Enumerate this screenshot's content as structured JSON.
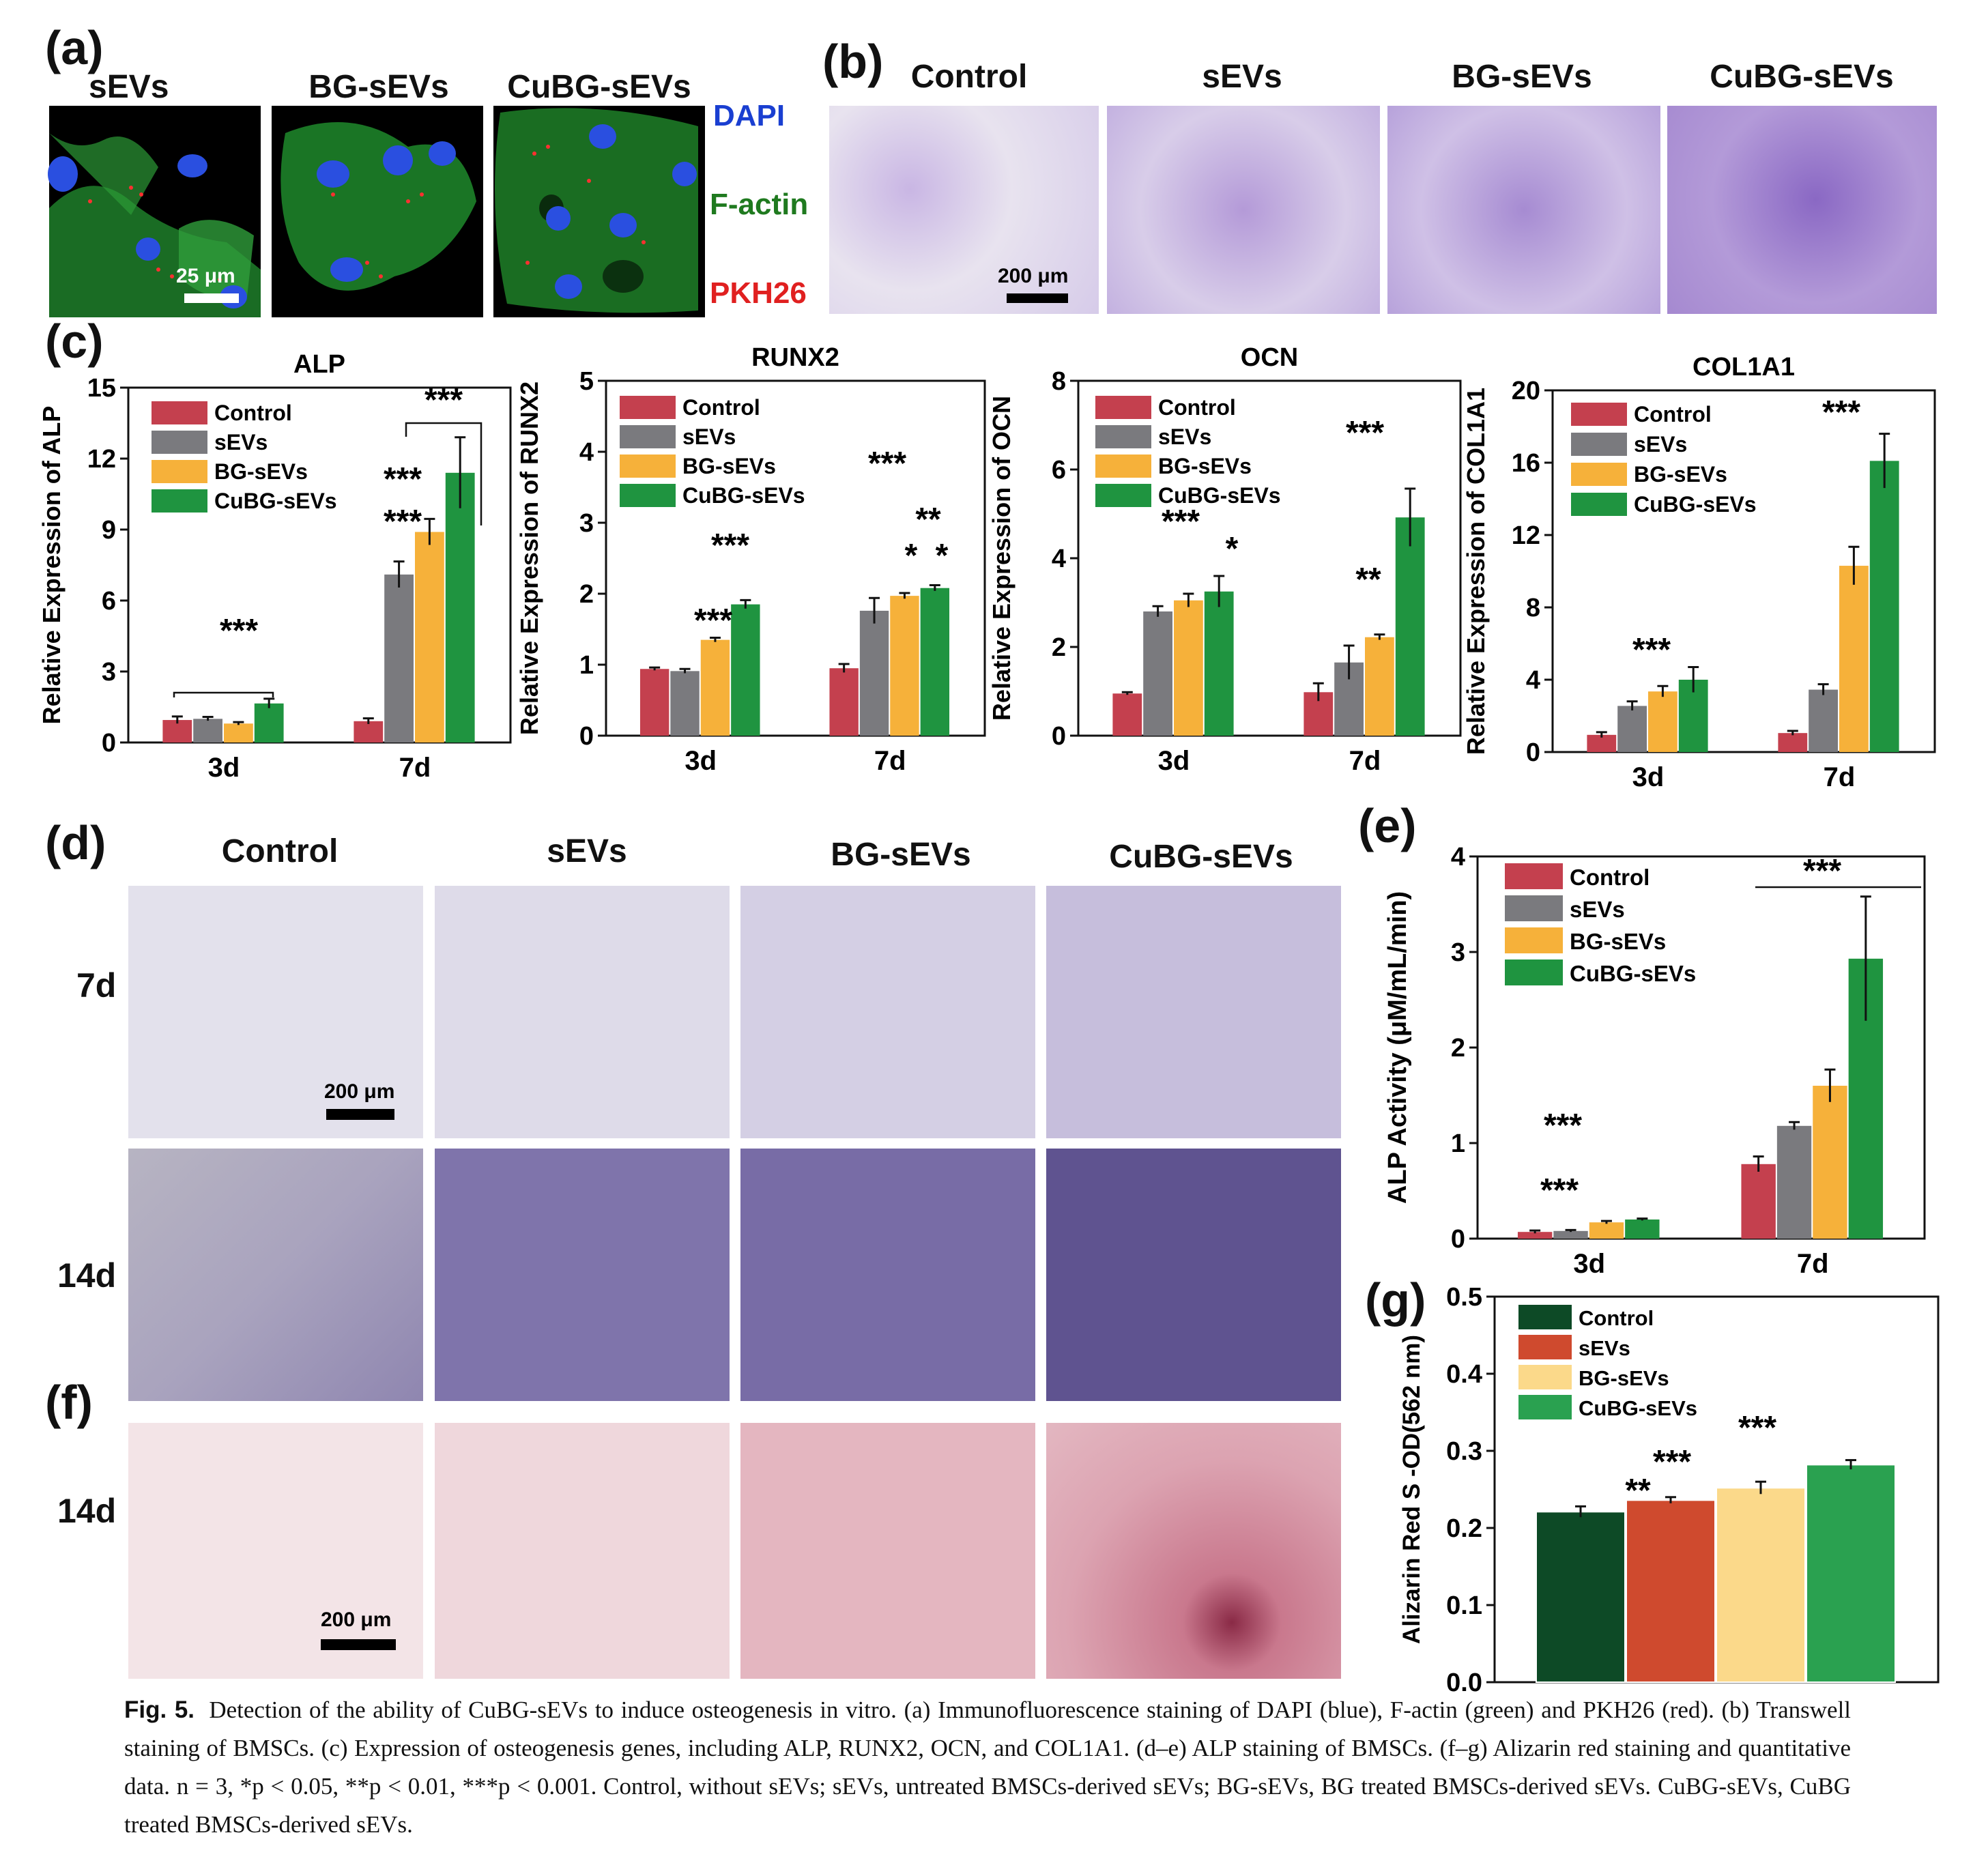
{
  "panel_letters": {
    "a": "(a)",
    "b": "(b)",
    "c": "(c)",
    "d": "(d)",
    "e": "(e)",
    "f": "(f)",
    "g": "(g)"
  },
  "panel_a": {
    "columns": [
      "sEVs",
      "BG-sEVs",
      "CuBG-sEVs"
    ],
    "legend": [
      {
        "label": "DAPI",
        "color": "#1a3fd1"
      },
      {
        "label": "F-actin",
        "color": "#1f7a1f"
      },
      {
        "label": "PKH26",
        "color": "#e02020"
      }
    ],
    "scale": "25 μm"
  },
  "panel_b": {
    "columns": [
      "Control",
      "sEVs",
      "BG-sEVs",
      "CuBG-sEVs"
    ],
    "scale": "200 μm"
  },
  "panel_d": {
    "columns": [
      "Control",
      "sEVs",
      "BG-sEVs",
      "CuBG-sEVs"
    ],
    "rows": [
      "7d",
      "14d"
    ],
    "scale": "200 μm"
  },
  "panel_f": {
    "rows": [
      "14d"
    ],
    "scale": "200 μm"
  },
  "legend_series": [
    "Control",
    "sEVs",
    "BG-sEVs",
    "CuBG-sEVs"
  ],
  "colors": {
    "c_control": "#c4404e",
    "c_sevs": "#7a7a7e",
    "c_bg": "#f6b13a",
    "c_cubg": "#1f9440",
    "g_control": "#0d4a26",
    "g_sevs": "#cf4a2e",
    "g_bg": "#fbd98a",
    "g_cubg": "#2aa150"
  },
  "chart_data": [
    {
      "id": "alp",
      "type": "bar",
      "title": "ALP",
      "ylabel": "Relative  Expression of ALP",
      "categories": [
        "3d",
        "7d"
      ],
      "ylim": [
        0,
        15
      ],
      "yticks": [
        0,
        3,
        6,
        9,
        12,
        15
      ],
      "series": [
        {
          "name": "Control",
          "values": [
            0.95,
            0.9
          ],
          "errors": [
            0.15,
            0.12
          ]
        },
        {
          "name": "sEVs",
          "values": [
            1.0,
            7.1
          ],
          "errors": [
            0.08,
            0.55
          ]
        },
        {
          "name": "BG-sEVs",
          "values": [
            0.8,
            8.9
          ],
          "errors": [
            0.06,
            0.55
          ]
        },
        {
          "name": "CuBG-sEVs",
          "values": [
            1.65,
            11.4
          ],
          "errors": [
            0.2,
            1.5
          ]
        }
      ],
      "annotations": [
        "***",
        "***",
        "***",
        "***"
      ]
    },
    {
      "id": "runx2",
      "type": "bar",
      "title": "RUNX2",
      "ylabel": "Relative  Expression of RUNX2",
      "categories": [
        "3d",
        "7d"
      ],
      "ylim": [
        0,
        5
      ],
      "yticks": [
        0,
        1,
        2,
        3,
        4,
        5
      ],
      "series": [
        {
          "name": "Control",
          "values": [
            0.94,
            0.95
          ],
          "errors": [
            0.02,
            0.06
          ]
        },
        {
          "name": "sEVs",
          "values": [
            0.91,
            1.76
          ],
          "errors": [
            0.03,
            0.18
          ]
        },
        {
          "name": "BG-sEVs",
          "values": [
            1.35,
            1.97
          ],
          "errors": [
            0.03,
            0.04
          ]
        },
        {
          "name": "CuBG-sEVs",
          "values": [
            1.85,
            2.08
          ],
          "errors": [
            0.06,
            0.04
          ]
        }
      ],
      "annotations": [
        "***",
        "***",
        "***",
        "**",
        "*",
        "*"
      ]
    },
    {
      "id": "ocn",
      "type": "bar",
      "title": "OCN",
      "ylabel": "Relative  Expression of OCN",
      "categories": [
        "3d",
        "7d"
      ],
      "ylim": [
        0,
        8
      ],
      "yticks": [
        0,
        2,
        4,
        6,
        8
      ],
      "series": [
        {
          "name": "Control",
          "values": [
            0.95,
            0.98
          ],
          "errors": [
            0.03,
            0.2
          ]
        },
        {
          "name": "sEVs",
          "values": [
            2.8,
            1.65
          ],
          "errors": [
            0.12,
            0.38
          ]
        },
        {
          "name": "BG-sEVs",
          "values": [
            3.05,
            2.22
          ],
          "errors": [
            0.15,
            0.06
          ]
        },
        {
          "name": "CuBG-sEVs",
          "values": [
            3.25,
            4.92
          ],
          "errors": [
            0.35,
            0.65
          ]
        }
      ],
      "annotations": [
        "***",
        "*",
        "***",
        "**"
      ]
    },
    {
      "id": "col1a1",
      "type": "bar",
      "title": "COL1A1",
      "ylabel": "Relative  Expression of COL1A1",
      "categories": [
        "3d",
        "7d"
      ],
      "ylim": [
        0,
        20
      ],
      "yticks": [
        0,
        4,
        8,
        12,
        16,
        20
      ],
      "series": [
        {
          "name": "Control",
          "values": [
            0.95,
            1.05
          ],
          "errors": [
            0.15,
            0.12
          ]
        },
        {
          "name": "sEVs",
          "values": [
            2.55,
            3.45
          ],
          "errors": [
            0.25,
            0.3
          ]
        },
        {
          "name": "BG-sEVs",
          "values": [
            3.35,
            10.3
          ],
          "errors": [
            0.3,
            1.05
          ]
        },
        {
          "name": "CuBG-sEVs",
          "values": [
            4.0,
            16.1
          ],
          "errors": [
            0.7,
            1.5
          ]
        }
      ],
      "annotations": [
        "***",
        "***"
      ]
    },
    {
      "id": "alp_activity",
      "type": "bar",
      "title": "",
      "ylabel": "ALP Activity (μM/mL/min)",
      "categories": [
        "3d",
        "7d"
      ],
      "ylim": [
        0,
        4
      ],
      "yticks": [
        0,
        1,
        2,
        3,
        4
      ],
      "series": [
        {
          "name": "Control",
          "values": [
            0.07,
            0.78
          ],
          "errors": [
            0.015,
            0.08
          ]
        },
        {
          "name": "sEVs",
          "values": [
            0.08,
            1.18
          ],
          "errors": [
            0.01,
            0.04
          ]
        },
        {
          "name": "BG-sEVs",
          "values": [
            0.17,
            1.6
          ],
          "errors": [
            0.015,
            0.17
          ]
        },
        {
          "name": "CuBG-sEVs",
          "values": [
            0.2,
            2.93
          ],
          "errors": [
            0.01,
            0.65
          ]
        }
      ],
      "annotations": [
        "***",
        "***",
        "***"
      ]
    },
    {
      "id": "alizarin",
      "type": "bar",
      "title": "",
      "ylabel": "Alizarin Red S -OD(562 nm)",
      "categories": [
        ""
      ],
      "ylim": [
        0,
        0.5
      ],
      "yticks": [
        0.0,
        0.1,
        0.2,
        0.3,
        0.4,
        0.5
      ],
      "series": [
        {
          "name": "Control",
          "values": [
            0.221
          ],
          "errors": [
            0.007
          ]
        },
        {
          "name": "sEVs",
          "values": [
            0.236
          ],
          "errors": [
            0.004
          ]
        },
        {
          "name": "BG-sEVs",
          "values": [
            0.252
          ],
          "errors": [
            0.008
          ]
        },
        {
          "name": "CuBG-sEVs",
          "values": [
            0.282
          ],
          "errors": [
            0.006
          ]
        }
      ],
      "annotations": [
        "**",
        "***",
        "***"
      ]
    }
  ],
  "caption": {
    "label": "Fig. 5.",
    "text": "Detection of the ability of CuBG-sEVs to induce osteogenesis in vitro. (a) Immunofluorescence staining of DAPI (blue), F-actin (green) and PKH26 (red). (b) Transwell staining of BMSCs. (c) Expression of osteogenesis genes, including ALP, RUNX2, OCN, and COL1A1. (d–e) ALP staining of BMSCs. (f–g) Alizarin red staining and quantitative data. n = 3, *p < 0.05, **p < 0.01, ***p < 0.001. Control, without sEVs; sEVs, untreated BMSCs-derived sEVs; BG-sEVs, BG treated BMSCs-derived sEVs. CuBG-sEVs, CuBG treated BMSCs-derived sEVs."
  }
}
